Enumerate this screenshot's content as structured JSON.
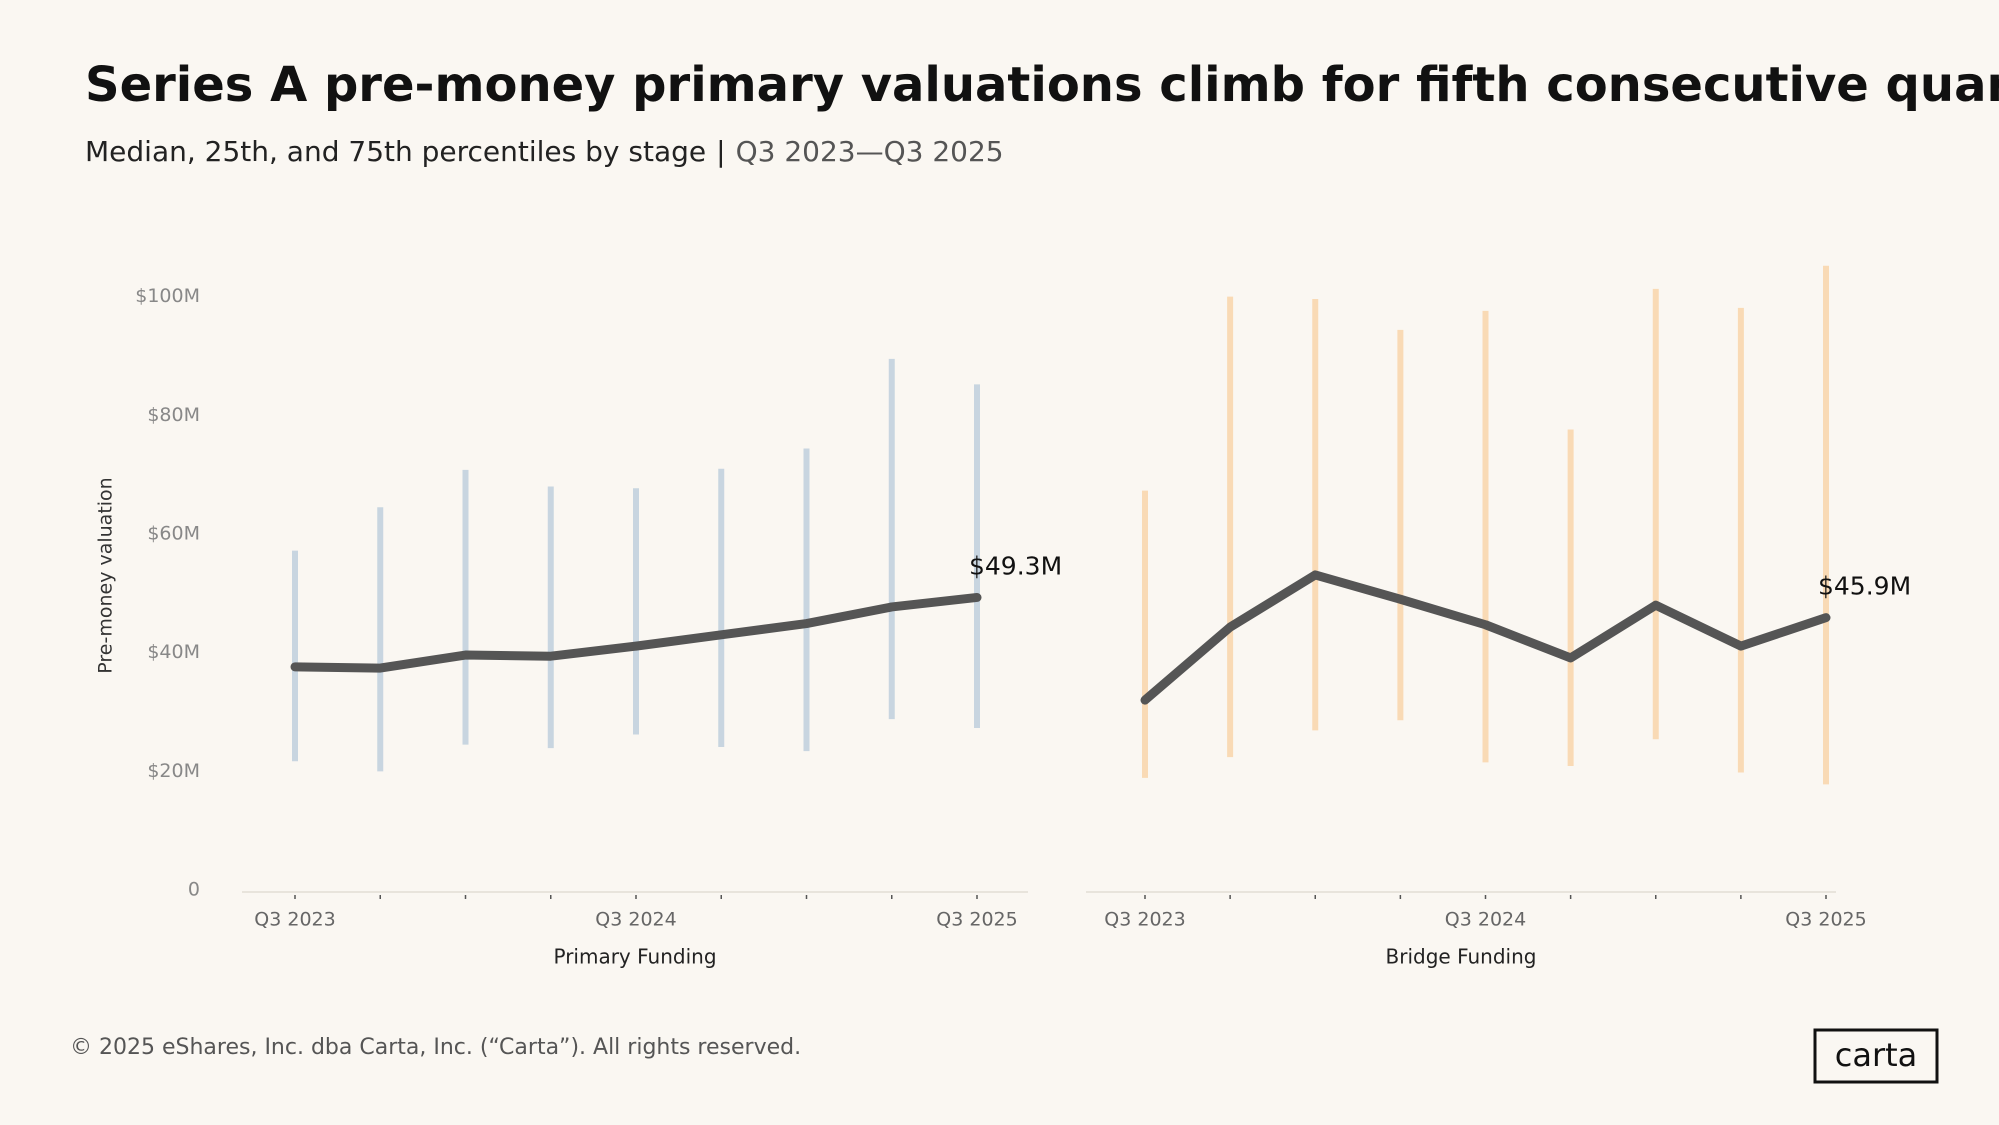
{
  "title": "Series A pre-money primary valuations climb for fifth consecutive quarter",
  "subtitle": "Median, 25th, and 75th percentiles by stage",
  "subtitle_range": "Q3 2023—Q3 2025",
  "footer": "© 2025 eShares, Inc. dba Carta, Inc. (“Carta”). All rights reserved.",
  "logo": "carta",
  "chart_data": [
    {
      "type": "line",
      "x_label": "Primary Funding",
      "y_label": "Pre-money valuation",
      "categories": [
        "Q3 2023",
        null,
        null,
        null,
        "Q3 2024",
        null,
        null,
        null,
        "Q3 2025"
      ],
      "values": [
        37.6,
        37.4,
        39.6,
        39.4,
        41.1,
        43.0,
        44.9,
        47.7,
        49.3
      ],
      "value_labels": [
        null,
        null,
        null,
        null,
        null,
        null,
        null,
        null,
        "$49.3M"
      ],
      "low": [
        21.7,
        20.0,
        24.5,
        23.9,
        26.2,
        24.1,
        23.4,
        28.8,
        27.3
      ],
      "high": [
        57.2,
        64.5,
        70.8,
        68.0,
        67.7,
        71.0,
        74.4,
        89.5,
        85.2
      ],
      "color": "#555555",
      "range_color": "#c8d5e0",
      "ylim": [
        0,
        106
      ],
      "yticks": [
        0,
        {
          "value": 20,
          "label": "$20M"
        },
        {
          "value": 40,
          "label": "$40M"
        },
        {
          "value": 60,
          "label": "$60M"
        },
        {
          "value": 80,
          "label": "$80M"
        },
        {
          "value": 100,
          "label": "$100M"
        }
      ]
    },
    {
      "type": "line",
      "x_label": "Bridge Funding",
      "categories": [
        "Q3 2023",
        null,
        null,
        null,
        "Q3 2024",
        null,
        null,
        null,
        "Q3 2025"
      ],
      "values": [
        32.0,
        44.3,
        53.1,
        49.0,
        44.7,
        39.1,
        48.0,
        41.1,
        45.9
      ],
      "value_labels": [
        null,
        null,
        null,
        null,
        null,
        null,
        null,
        null,
        "$45.9M"
      ],
      "low": [
        18.9,
        22.4,
        26.9,
        28.6,
        21.5,
        20.9,
        25.4,
        19.8,
        17.8
      ],
      "high": [
        67.3,
        100.0,
        99.6,
        94.4,
        97.6,
        77.6,
        101.3,
        98.1,
        105.2
      ],
      "color": "#555555",
      "range_color": "#f9dab5",
      "ylim": [
        0,
        106
      ]
    }
  ]
}
